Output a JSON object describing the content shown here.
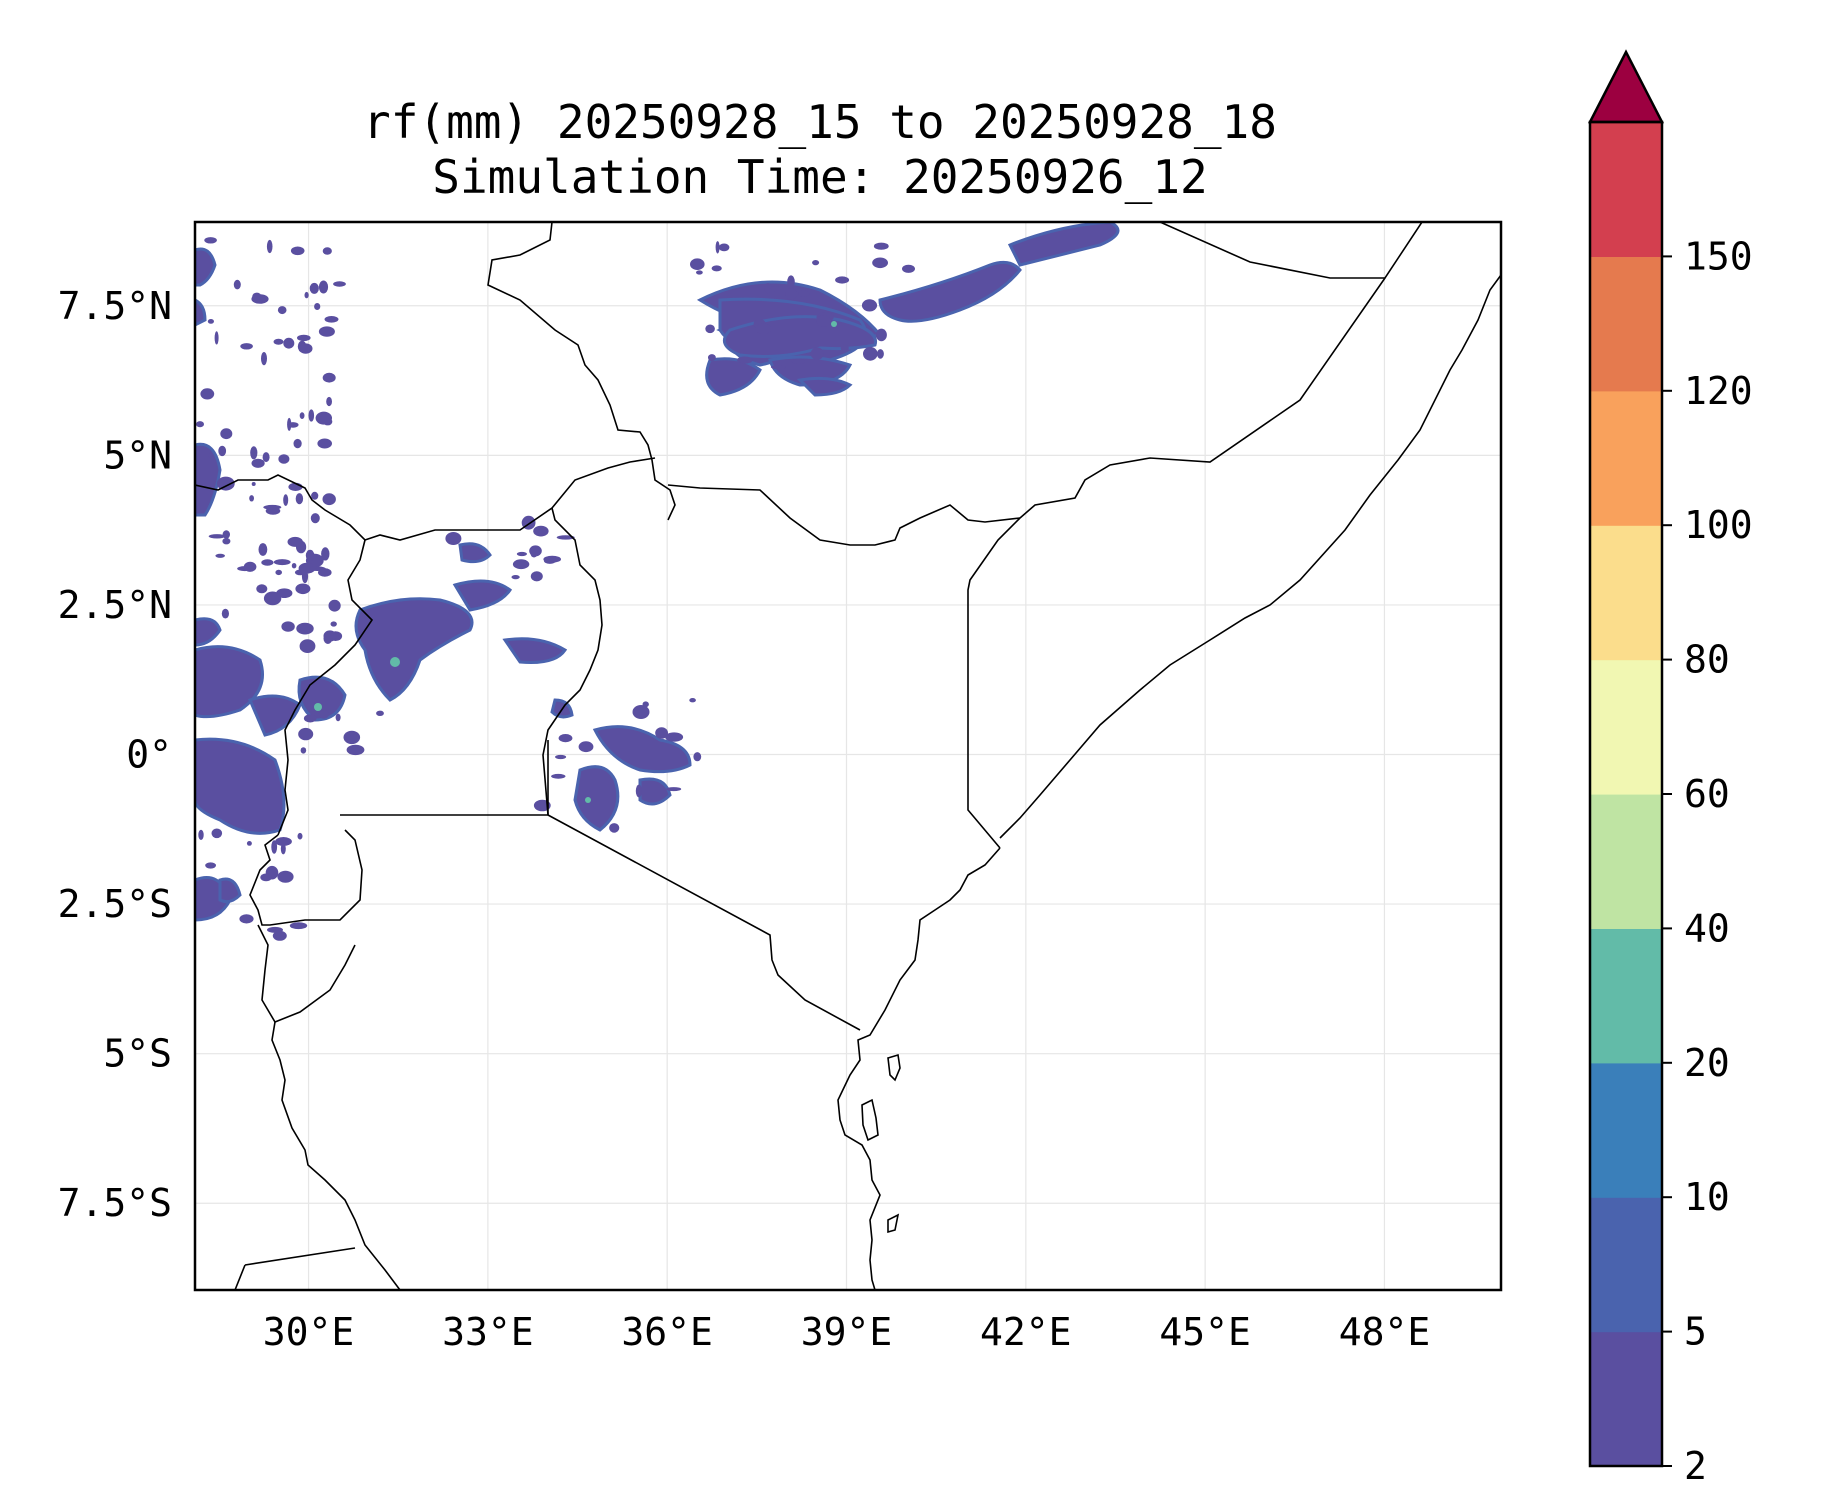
{
  "title": {
    "line1": "rf(mm) 20250928_15 to 20250928_18",
    "line2": "Simulation Time: 20250926_12"
  },
  "map": {
    "lat_labels": [
      "7.5°N",
      "5°N",
      "2.5°N",
      "0°",
      "2.5°S",
      "5°S",
      "7.5°S"
    ],
    "lon_labels": [
      "30°E",
      "33°E",
      "36°E",
      "39°E",
      "42°E",
      "45°E",
      "48°E"
    ],
    "lat_values": [
      7.5,
      5,
      2.5,
      0,
      -2.5,
      -5,
      -7.5
    ],
    "lon_values": [
      30,
      33,
      36,
      39,
      42,
      45,
      48
    ],
    "extent": {
      "lon_min": 28.1,
      "lon_max": 49.95,
      "lat_min": -8.95,
      "lat_max": 8.9
    }
  },
  "colorbar": {
    "levels": [
      "2",
      "5",
      "10",
      "20",
      "40",
      "60",
      "80",
      "100",
      "120",
      "150"
    ],
    "colors": [
      "#5a4fa0",
      "#4a63ae",
      "#3a7fba",
      "#62bba8",
      "#bfe4a3",
      "#f1f7b2",
      "#fbdd8c",
      "#f9a15c",
      "#e57a4e",
      "#d33f4f"
    ],
    "extend_color": "#9c0040"
  },
  "colors": {
    "rain_dark": "#5a4fa0",
    "rain_mid": "#4a63ae",
    "rain_high": "#62bba8",
    "boundary": "#000000",
    "grid": "#e6e6e6"
  }
}
